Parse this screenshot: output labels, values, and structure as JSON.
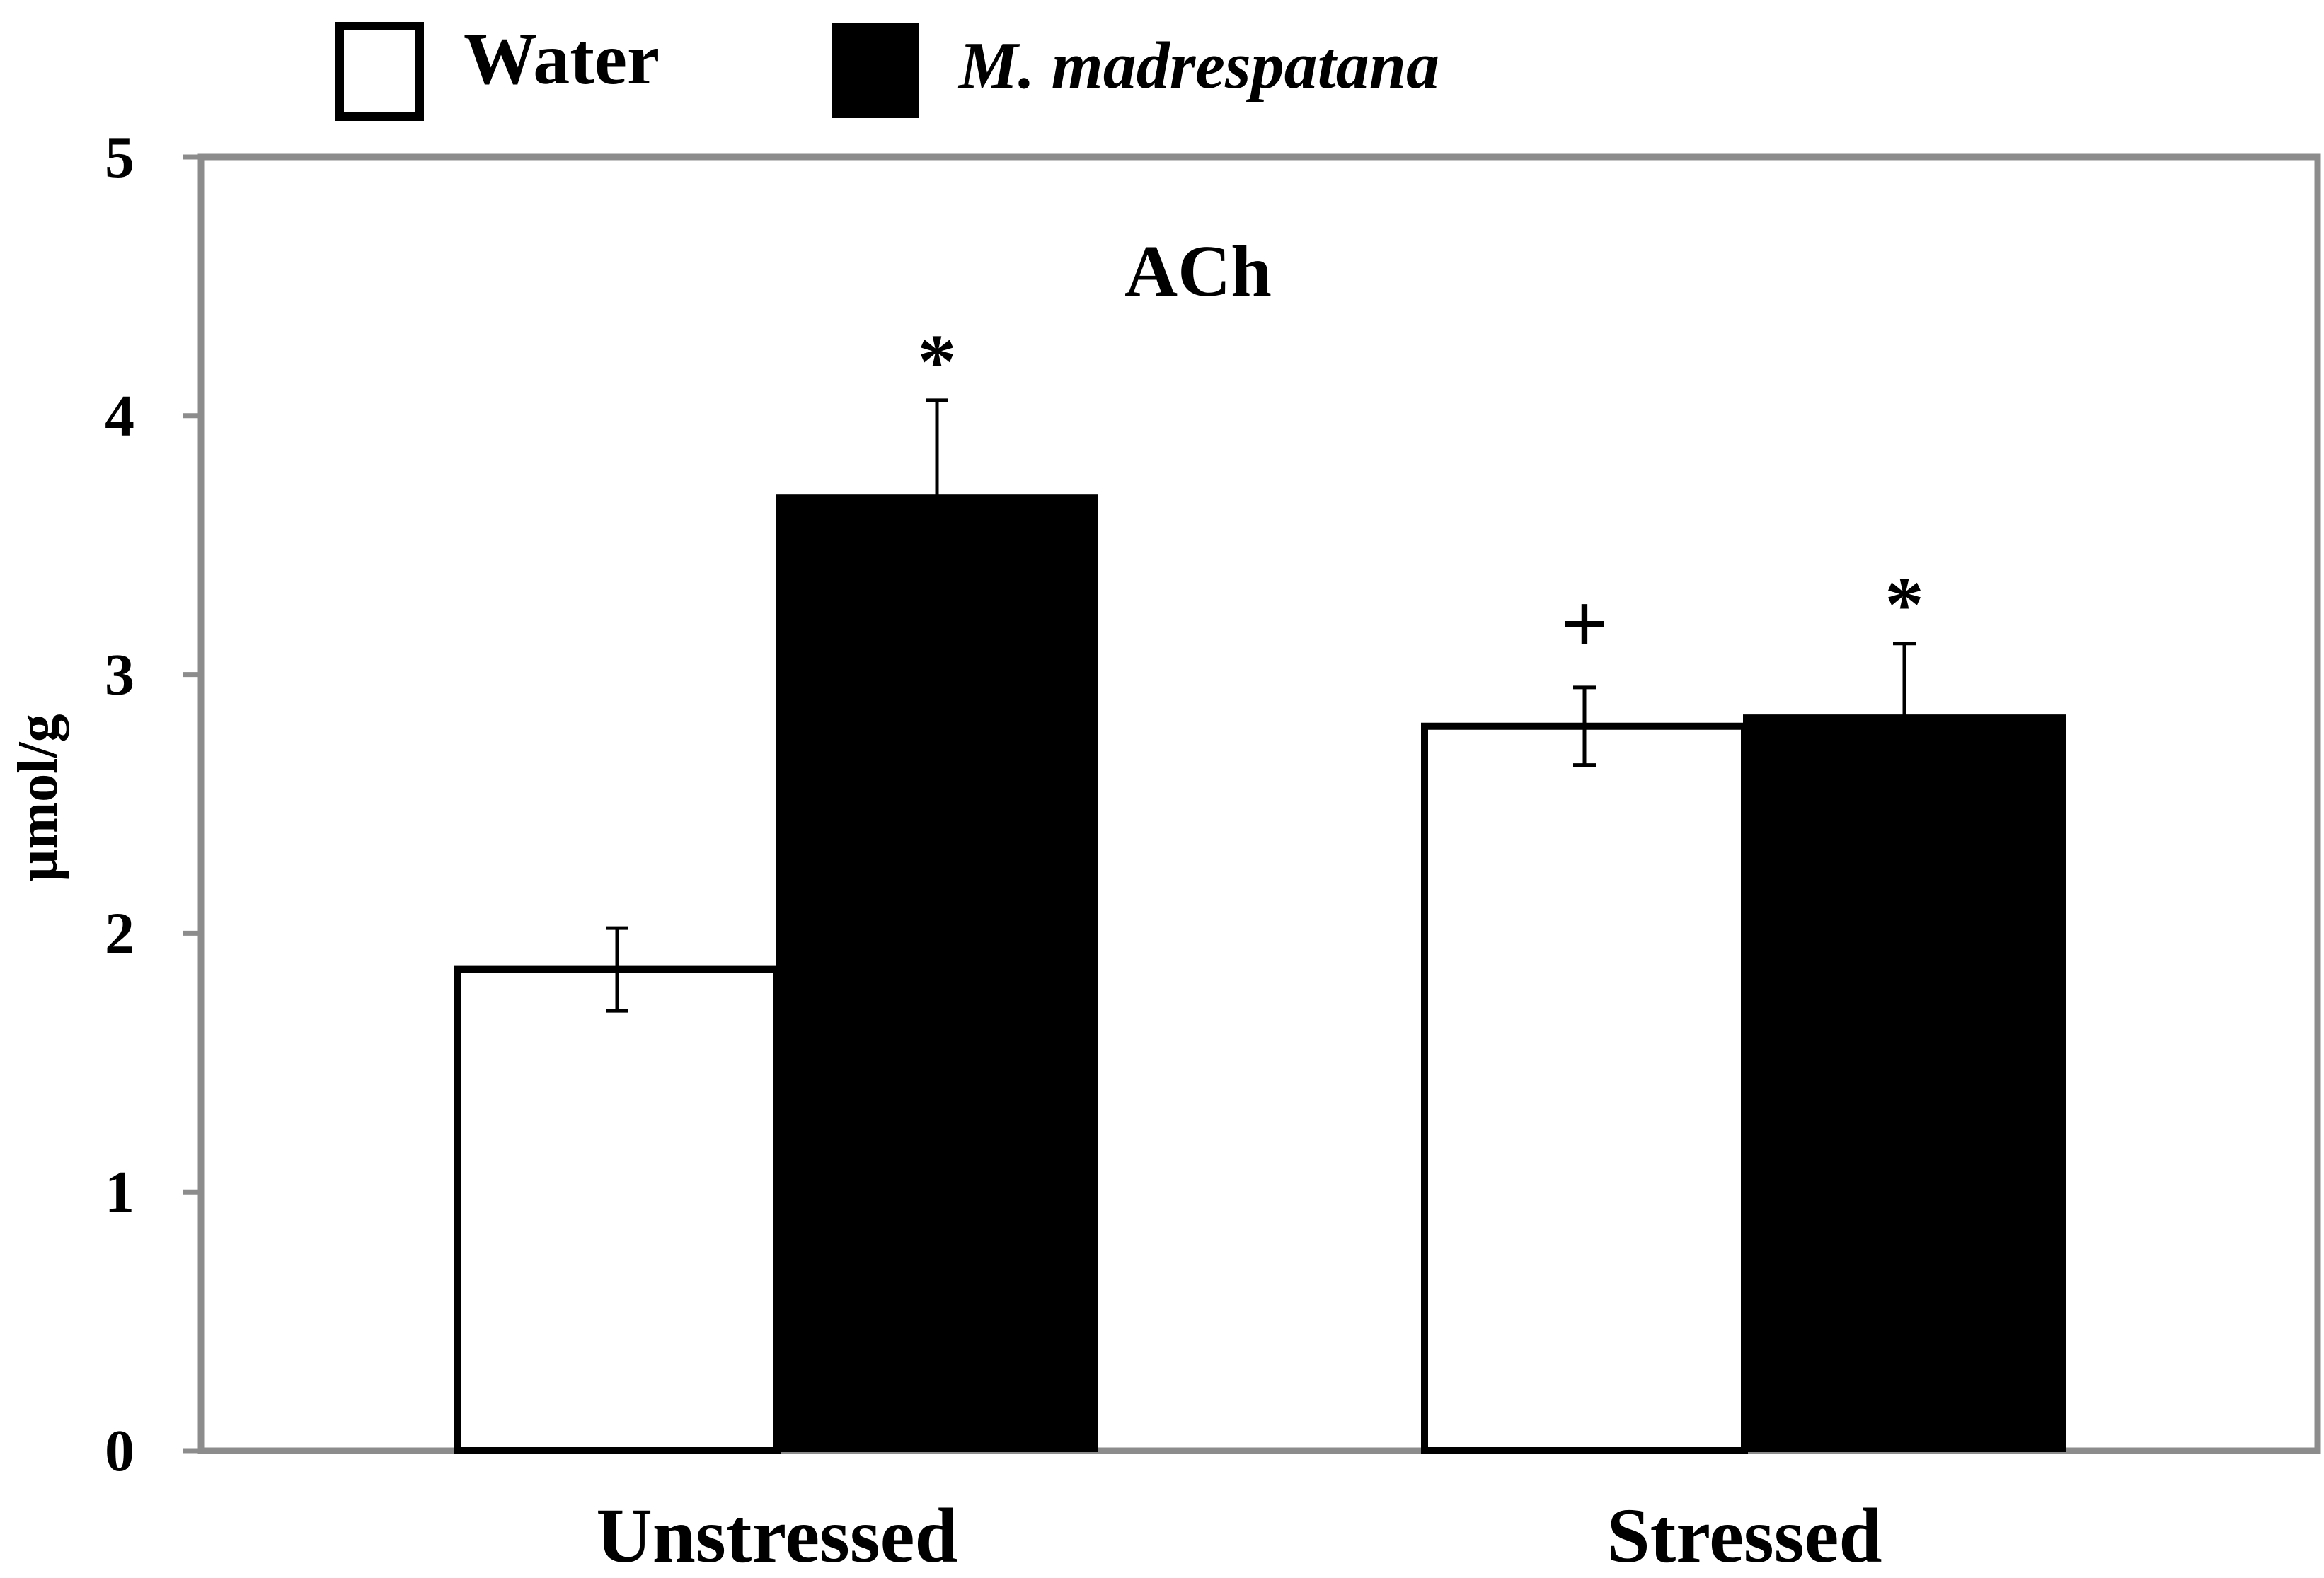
{
  "chart_data": {
    "type": "bar",
    "title": "ACh",
    "ylabel": "µmol/g",
    "xlabel": "",
    "ylim": [
      0,
      5
    ],
    "yticks": [
      0,
      1,
      2,
      3,
      4,
      5
    ],
    "ytick_labels": [
      "0",
      "1",
      "2",
      "3",
      "4",
      "5"
    ],
    "categories": [
      "Unstressed",
      "Stressed"
    ],
    "series": [
      {
        "name": "Water",
        "fill": "#ffffff",
        "values": [
          1.86,
          2.8
        ],
        "errors": [
          0.16,
          0.15
        ],
        "markers": [
          "",
          "+"
        ]
      },
      {
        "name": "M. madrespatana",
        "fill": "#000000",
        "values": [
          3.69,
          2.84
        ],
        "errors": [
          0.37,
          0.28
        ],
        "markers": [
          "*",
          "*"
        ]
      }
    ],
    "legend_position": "top-left",
    "grid": false
  },
  "colors": {
    "frame": "#8c8c8c",
    "bar_stroke": "#000000",
    "text": "#000000"
  }
}
